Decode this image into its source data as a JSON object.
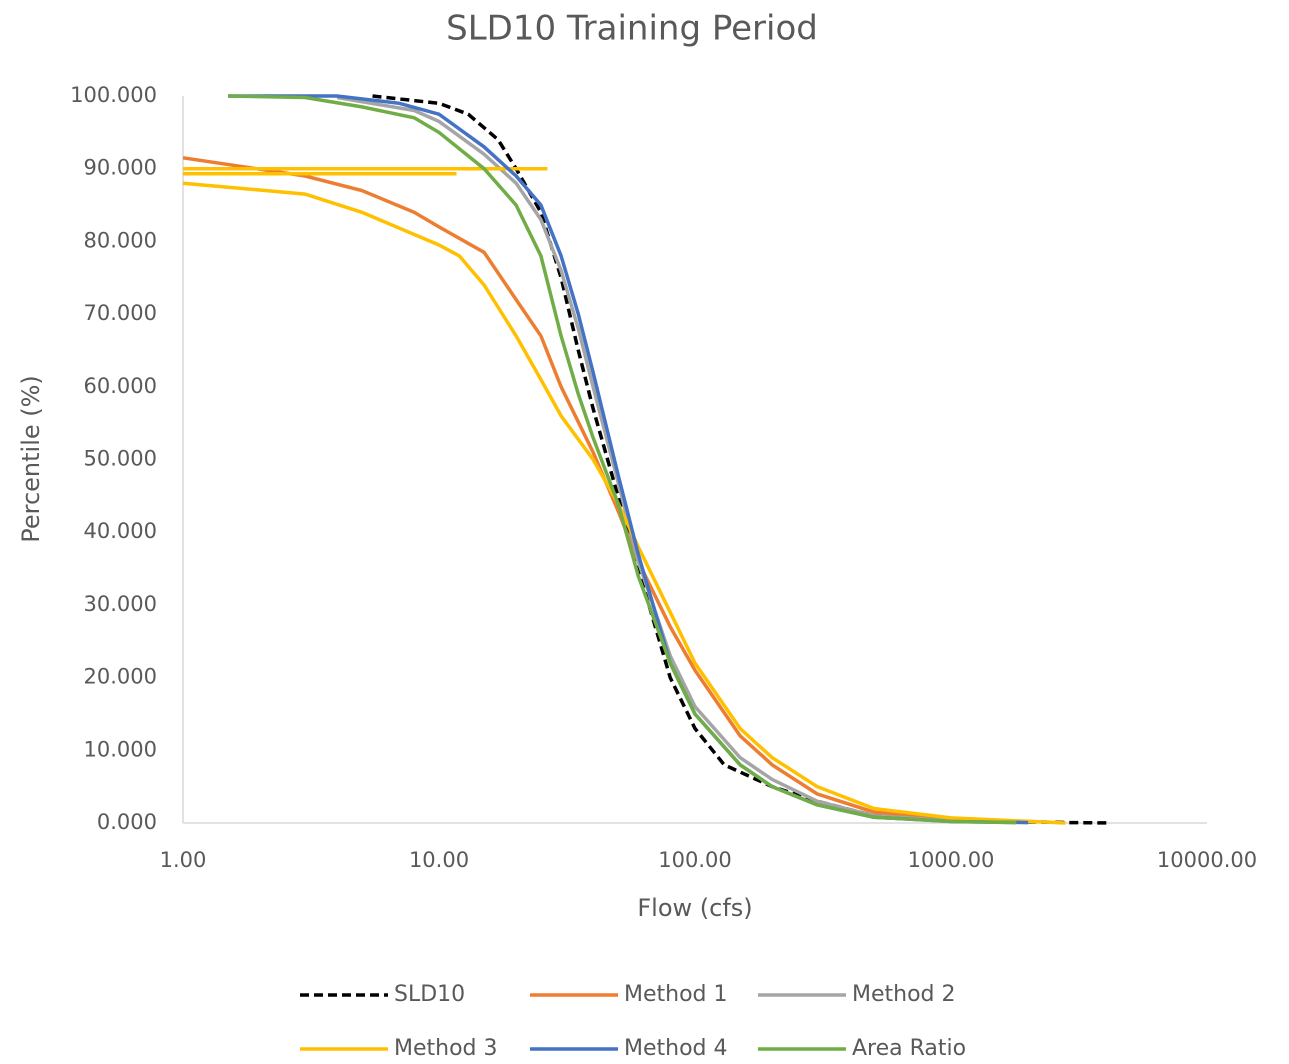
{
  "chart_data": {
    "type": "line",
    "title": "SLD10 Training Period",
    "x_label": "Flow (cfs)",
    "y_label": "Percentile (%)",
    "xscale": "log",
    "xlim": [
      1,
      10000
    ],
    "xticks": [
      {
        "value": 1,
        "label": "1.00"
      },
      {
        "value": 10,
        "label": "10.00"
      },
      {
        "value": 100,
        "label": "100.00"
      },
      {
        "value": 1000,
        "label": "1000.00"
      },
      {
        "value": 10000,
        "label": "10000.00"
      }
    ],
    "ylim": [
      0,
      100
    ],
    "yticks": [
      {
        "value": 0,
        "label": "0.000"
      },
      {
        "value": 10,
        "label": "10.000"
      },
      {
        "value": 20,
        "label": "20.000"
      },
      {
        "value": 30,
        "label": "30.000"
      },
      {
        "value": 40,
        "label": "40.000"
      },
      {
        "value": 50,
        "label": "50.000"
      },
      {
        "value": 60,
        "label": "60.000"
      },
      {
        "value": 70,
        "label": "70.000"
      },
      {
        "value": 80,
        "label": "80.000"
      },
      {
        "value": 90,
        "label": "90.000"
      },
      {
        "value": 100,
        "label": "100.000"
      }
    ],
    "grid": false,
    "legend": "bottom",
    "series": [
      {
        "name": "SLD10",
        "color": "#000000",
        "dashed": true,
        "x": [
          5.5,
          10,
          13,
          17,
          20,
          25,
          30,
          35,
          40,
          50,
          60,
          70,
          80,
          100,
          130,
          200,
          300,
          500,
          1000,
          2900,
          4100
        ],
        "values": [
          100,
          99,
          97.5,
          94,
          90,
          84,
          75,
          65,
          57,
          45,
          35,
          27,
          20,
          13,
          8,
          5,
          3,
          1,
          0.4,
          0.05,
          0.02
        ]
      },
      {
        "name": "Method 1",
        "color": "#ed7d31",
        "dashed": false,
        "x": [
          1,
          3,
          5,
          8,
          10,
          15,
          20,
          25,
          30,
          40,
          50,
          60,
          80,
          100,
          150,
          200,
          300,
          500,
          1000,
          2000
        ],
        "values": [
          91.5,
          89,
          87,
          84,
          82,
          78.5,
          72,
          67,
          60,
          51,
          43,
          36,
          27,
          21,
          12,
          8,
          4,
          1.5,
          0.5,
          0.1
        ]
      },
      {
        "name": "Method 2",
        "color": "#a5a5a5",
        "dashed": false,
        "x": [
          4,
          8,
          10,
          15,
          20,
          25,
          30,
          35,
          40,
          50,
          60,
          80,
          100,
          150,
          200,
          300,
          500,
          1000,
          2000
        ],
        "values": [
          99.8,
          98,
          96.5,
          92,
          88,
          83,
          76,
          68,
          60,
          47,
          36,
          23,
          16,
          9,
          6,
          3,
          1,
          0.3,
          0.1
        ]
      },
      {
        "name": "Method 3",
        "color": "#ffc000",
        "dashed": false,
        "x": [
          1,
          26.5,
          null,
          1,
          11.7,
          null,
          1,
          3,
          5,
          10,
          12,
          15,
          20,
          25,
          30,
          40,
          50,
          60,
          80,
          100,
          150,
          200,
          300,
          500,
          1000,
          2800
        ],
        "values": [
          90,
          90,
          null,
          89.3,
          89.3,
          null,
          88,
          86.5,
          84,
          79.5,
          78,
          74,
          67,
          61,
          56,
          50,
          44,
          38,
          29,
          22,
          13,
          9,
          5,
          2,
          0.7,
          0
        ]
      },
      {
        "name": "Method 4",
        "color": "#4472c4",
        "dashed": false,
        "x": [
          1.5,
          4,
          7,
          10,
          15,
          20,
          25,
          30,
          35,
          40,
          50,
          60,
          80,
          100,
          150,
          200,
          300,
          500,
          1000,
          2000
        ],
        "values": [
          100,
          100,
          99,
          97.5,
          93,
          89,
          85,
          78,
          70,
          62,
          48,
          37,
          22,
          15,
          8,
          5,
          2.5,
          0.8,
          0.2,
          0.05
        ]
      },
      {
        "name": "Area Ratio",
        "color": "#70ad47",
        "dashed": false,
        "x": [
          1.5,
          3,
          5,
          8,
          10,
          15,
          20,
          25,
          30,
          35,
          40,
          50,
          60,
          80,
          100,
          150,
          200,
          300,
          500,
          1000,
          1800
        ],
        "values": [
          100,
          99.8,
          98.5,
          97,
          95,
          90,
          85,
          78,
          67,
          59,
          53,
          44,
          34,
          22,
          15,
          8,
          5,
          2.5,
          0.8,
          0.2,
          0.05
        ]
      }
    ]
  }
}
